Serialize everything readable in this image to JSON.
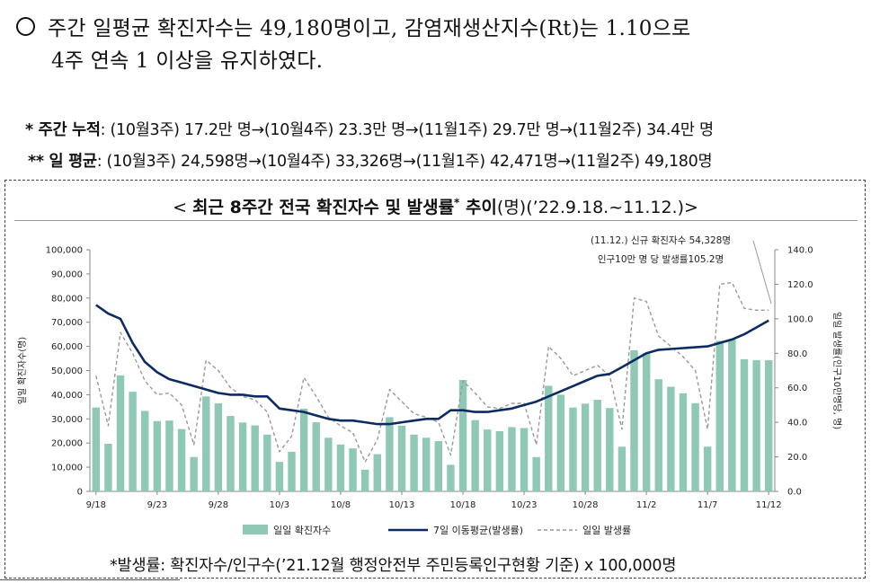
{
  "headline": {
    "line1": "주간 일평균 확진자수는 49,180명이고, 감염재생산지수(Rt)는 1.10으로",
    "line2": "4주 연속 1 이상을 유지하였다."
  },
  "weekly_cumulative": {
    "label": "* 주간 누적",
    "text": ": (10월3주) 17.2만 명→(10월4주) 23.3만 명→(11월1주) 29.7만 명→(11월2주) 34.4만 명"
  },
  "daily_average": {
    "label": "** 일 평균",
    "text": ": (10월3주) 24,598명→(10월4주) 33,326명→(11월1주) 42,471명→(11월2주) 49,180명"
  },
  "chart_title": {
    "prefix": "< ",
    "bold": "최근 8주간 전국 확진자수 및 발생률",
    "sup": "*",
    "bold2": " 추이",
    "rest": "(명)(’22.9.18.~11.12.)>"
  },
  "footnote": "*발생률: 확진자수/인구수(’21.12월 행정안전부 주민등록인구현황 기준) x 100,000명",
  "chart_data": {
    "type": "bar+line",
    "title": "최근 8주간 전국 확진자수 및 발생률* 추이(명)(’22.9.18.~11.12.)",
    "dates": [
      "9/18",
      "9/19",
      "9/20",
      "9/21",
      "9/22",
      "9/23",
      "9/24",
      "9/25",
      "9/26",
      "9/27",
      "9/28",
      "9/29",
      "9/30",
      "10/1",
      "10/2",
      "10/3",
      "10/4",
      "10/5",
      "10/6",
      "10/7",
      "10/8",
      "10/9",
      "10/10",
      "10/11",
      "10/12",
      "10/13",
      "10/14",
      "10/15",
      "10/16",
      "10/17",
      "10/18",
      "10/19",
      "10/20",
      "10/21",
      "10/22",
      "10/23",
      "10/24",
      "10/25",
      "10/26",
      "10/27",
      "10/28",
      "10/29",
      "10/30",
      "10/31",
      "11/1",
      "11/2",
      "11/3",
      "11/4",
      "11/5",
      "11/6",
      "11/7",
      "11/8",
      "11/9",
      "11/10",
      "11/11",
      "11/12"
    ],
    "x_tick_labels": [
      "9/18",
      "9/23",
      "9/28",
      "10/3",
      "10/8",
      "10/13",
      "10/18",
      "10/23",
      "10/28",
      "11/2",
      "11/7",
      "11/12"
    ],
    "series": [
      {
        "name": "일일 확진자수",
        "type": "bar",
        "axis": "left",
        "color": "#8fc9b6",
        "values": [
          34700,
          19700,
          48000,
          41200,
          33300,
          29100,
          29300,
          25800,
          14200,
          39300,
          36400,
          31200,
          28500,
          27300,
          23500,
          12200,
          16400,
          34200,
          28600,
          22200,
          19400,
          17800,
          9000,
          15400,
          30700,
          27200,
          23500,
          22200,
          20800,
          11000,
          46100,
          29500,
          25600,
          24900,
          26600,
          26200,
          14200,
          43700,
          40000,
          34700,
          36300,
          37900,
          34500,
          18500,
          58400,
          57200,
          46400,
          43300,
          40600,
          36500,
          18500,
          62300,
          62800,
          54700,
          54300,
          54300
        ]
      },
      {
        "name": "7일 이동평균(발생률)",
        "type": "line",
        "axis": "right",
        "color": "#0d2b63",
        "values": [
          108,
          103,
          100,
          86,
          75,
          69,
          65,
          63,
          61,
          59,
          57,
          56,
          56,
          55,
          55,
          48,
          47,
          46,
          44,
          42,
          41,
          41,
          40,
          39,
          39,
          40,
          41,
          42,
          42,
          47,
          47,
          46,
          46,
          47,
          48,
          50,
          52,
          55,
          58,
          61,
          64,
          67,
          68,
          72,
          76,
          80,
          82,
          82.5,
          83,
          83.5,
          84,
          86,
          88,
          91,
          95,
          99
        ]
      },
      {
        "name": "일일 발생률",
        "type": "line",
        "dashed": true,
        "axis": "right",
        "color": "#999999",
        "values": [
          67,
          38,
          92,
          80,
          64,
          56,
          57,
          50,
          27,
          76,
          70,
          60,
          55,
          53,
          46,
          23,
          32,
          66,
          55,
          43,
          38,
          34,
          17,
          30,
          59,
          52,
          45,
          43,
          40,
          21,
          64,
          57,
          49,
          48,
          51,
          51,
          27,
          84,
          77,
          67,
          70,
          73,
          67,
          36,
          112,
          110,
          90,
          84,
          78,
          70,
          36,
          120,
          121,
          106,
          105,
          105
        ]
      }
    ],
    "y_left": {
      "min": 0,
      "max": 100000,
      "step": 10000,
      "label": "일일 확진자수(명)"
    },
    "y_right": {
      "min": 0,
      "max": 140,
      "step": 20,
      "label": "일일 발생률(인구10만명당, 명)"
    },
    "annotation": [
      "(11.12.) 신규 확진자수 54,328명",
      "인구10만 명 당 발생률105.2명"
    ],
    "legend_position": "bottom",
    "grid": false
  }
}
